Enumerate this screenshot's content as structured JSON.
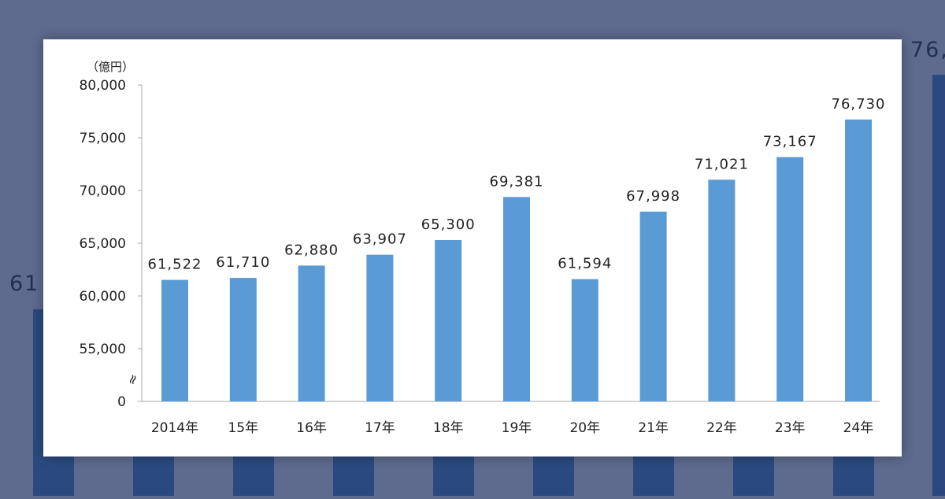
{
  "colors": {
    "bar": "#5b9bd5",
    "page_background": "#5e6a8e",
    "background_bar": "#2a4a7f",
    "axis": "#aaaaaa"
  },
  "background": {
    "left_partial_label": "61",
    "right_partial_label": "76,"
  },
  "chart_data": {
    "type": "bar",
    "title": "",
    "xlabel": "",
    "ylabel": "（億円）",
    "categories": [
      "2014年",
      "15年",
      "16年",
      "17年",
      "18年",
      "19年",
      "20年",
      "21年",
      "22年",
      "23年",
      "24年"
    ],
    "values": [
      61522,
      61710,
      62880,
      63907,
      65300,
      69381,
      61594,
      67998,
      71021,
      73167,
      76730
    ],
    "value_labels": [
      "61,522",
      "61,710",
      "62,880",
      "63,907",
      "65,300",
      "69,381",
      "61,594",
      "67,998",
      "71,021",
      "73,167",
      "76,730"
    ],
    "y_ticks": [
      {
        "value": 0,
        "label": "0"
      },
      {
        "value": 55000,
        "label": "55,000"
      },
      {
        "value": 60000,
        "label": "60,000"
      },
      {
        "value": 65000,
        "label": "65,000"
      },
      {
        "value": 70000,
        "label": "70,000"
      },
      {
        "value": 75000,
        "label": "75,000"
      },
      {
        "value": 80000,
        "label": "80,000"
      }
    ],
    "ylim": [
      50000,
      80000
    ],
    "axis_break": true,
    "axis_break_symbol": "≈",
    "grid": false,
    "legend": "none"
  }
}
